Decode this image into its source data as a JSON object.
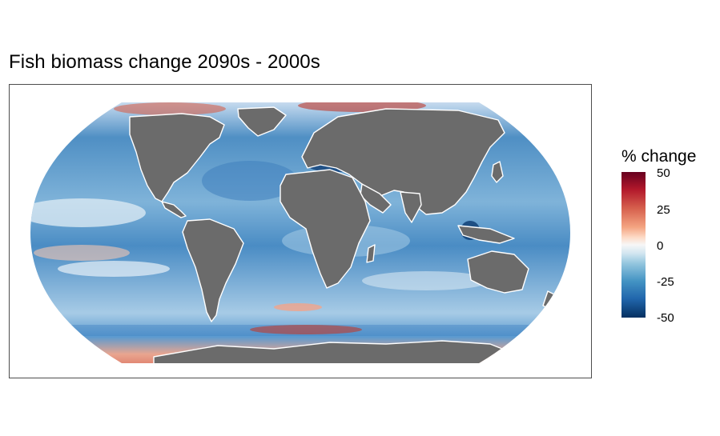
{
  "title": "Fish biomass change 2090s - 2000s",
  "legend": {
    "title": "% change",
    "ticks": [
      "50",
      "25",
      "0",
      "-25",
      "-50"
    ],
    "range": [
      -50,
      50
    ],
    "colors": [
      "#67001f",
      "#b2182b",
      "#d6604d",
      "#f4a582",
      "#fddbc7",
      "#f7f7f7",
      "#d1e5f0",
      "#92c5de",
      "#4393c3",
      "#2166ac",
      "#053061"
    ]
  },
  "map": {
    "projection": "Robinson",
    "land_color": "#6b6b6b",
    "coastline_color": "#ffffff"
  }
}
